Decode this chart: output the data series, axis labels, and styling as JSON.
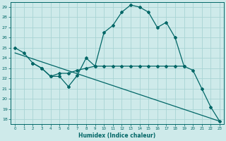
{
  "xlabel": "Humidex (Indice chaleur)",
  "ylabel": "",
  "xlim": [
    -0.5,
    23.5
  ],
  "ylim": [
    17.5,
    29.5
  ],
  "yticks": [
    18,
    19,
    20,
    21,
    22,
    23,
    24,
    25,
    26,
    27,
    28,
    29
  ],
  "xticks": [
    0,
    1,
    2,
    3,
    4,
    5,
    6,
    7,
    8,
    9,
    10,
    11,
    12,
    13,
    14,
    15,
    16,
    17,
    18,
    19,
    20,
    21,
    22,
    23
  ],
  "background_color": "#ceeaea",
  "grid_color": "#a8d4d4",
  "line_color": "#006666",
  "line1_x": [
    0,
    1,
    2,
    3,
    4,
    5,
    6,
    7,
    8,
    9,
    10,
    11,
    12,
    13,
    14,
    15,
    16,
    17,
    18,
    19,
    20,
    21,
    22,
    23
  ],
  "line1_y": [
    25.0,
    24.5,
    23.5,
    23.0,
    22.2,
    22.2,
    21.2,
    22.3,
    24.0,
    23.2,
    26.5,
    27.2,
    28.5,
    29.2,
    29.0,
    28.5,
    27.0,
    27.5,
    26.0,
    23.2,
    22.8,
    21.0,
    19.2,
    17.8
  ],
  "line2_x": [
    2,
    3,
    4,
    5,
    6,
    7,
    8,
    9,
    10,
    11,
    12,
    13,
    14,
    15,
    16,
    17,
    18,
    19
  ],
  "line2_y": [
    23.5,
    23.0,
    22.2,
    22.5,
    22.5,
    22.8,
    23.0,
    23.2,
    23.2,
    23.2,
    23.2,
    23.2,
    23.2,
    23.2,
    23.2,
    23.2,
    23.2,
    23.2
  ],
  "line3_x": [
    0,
    23
  ],
  "line3_y": [
    24.5,
    17.8
  ]
}
